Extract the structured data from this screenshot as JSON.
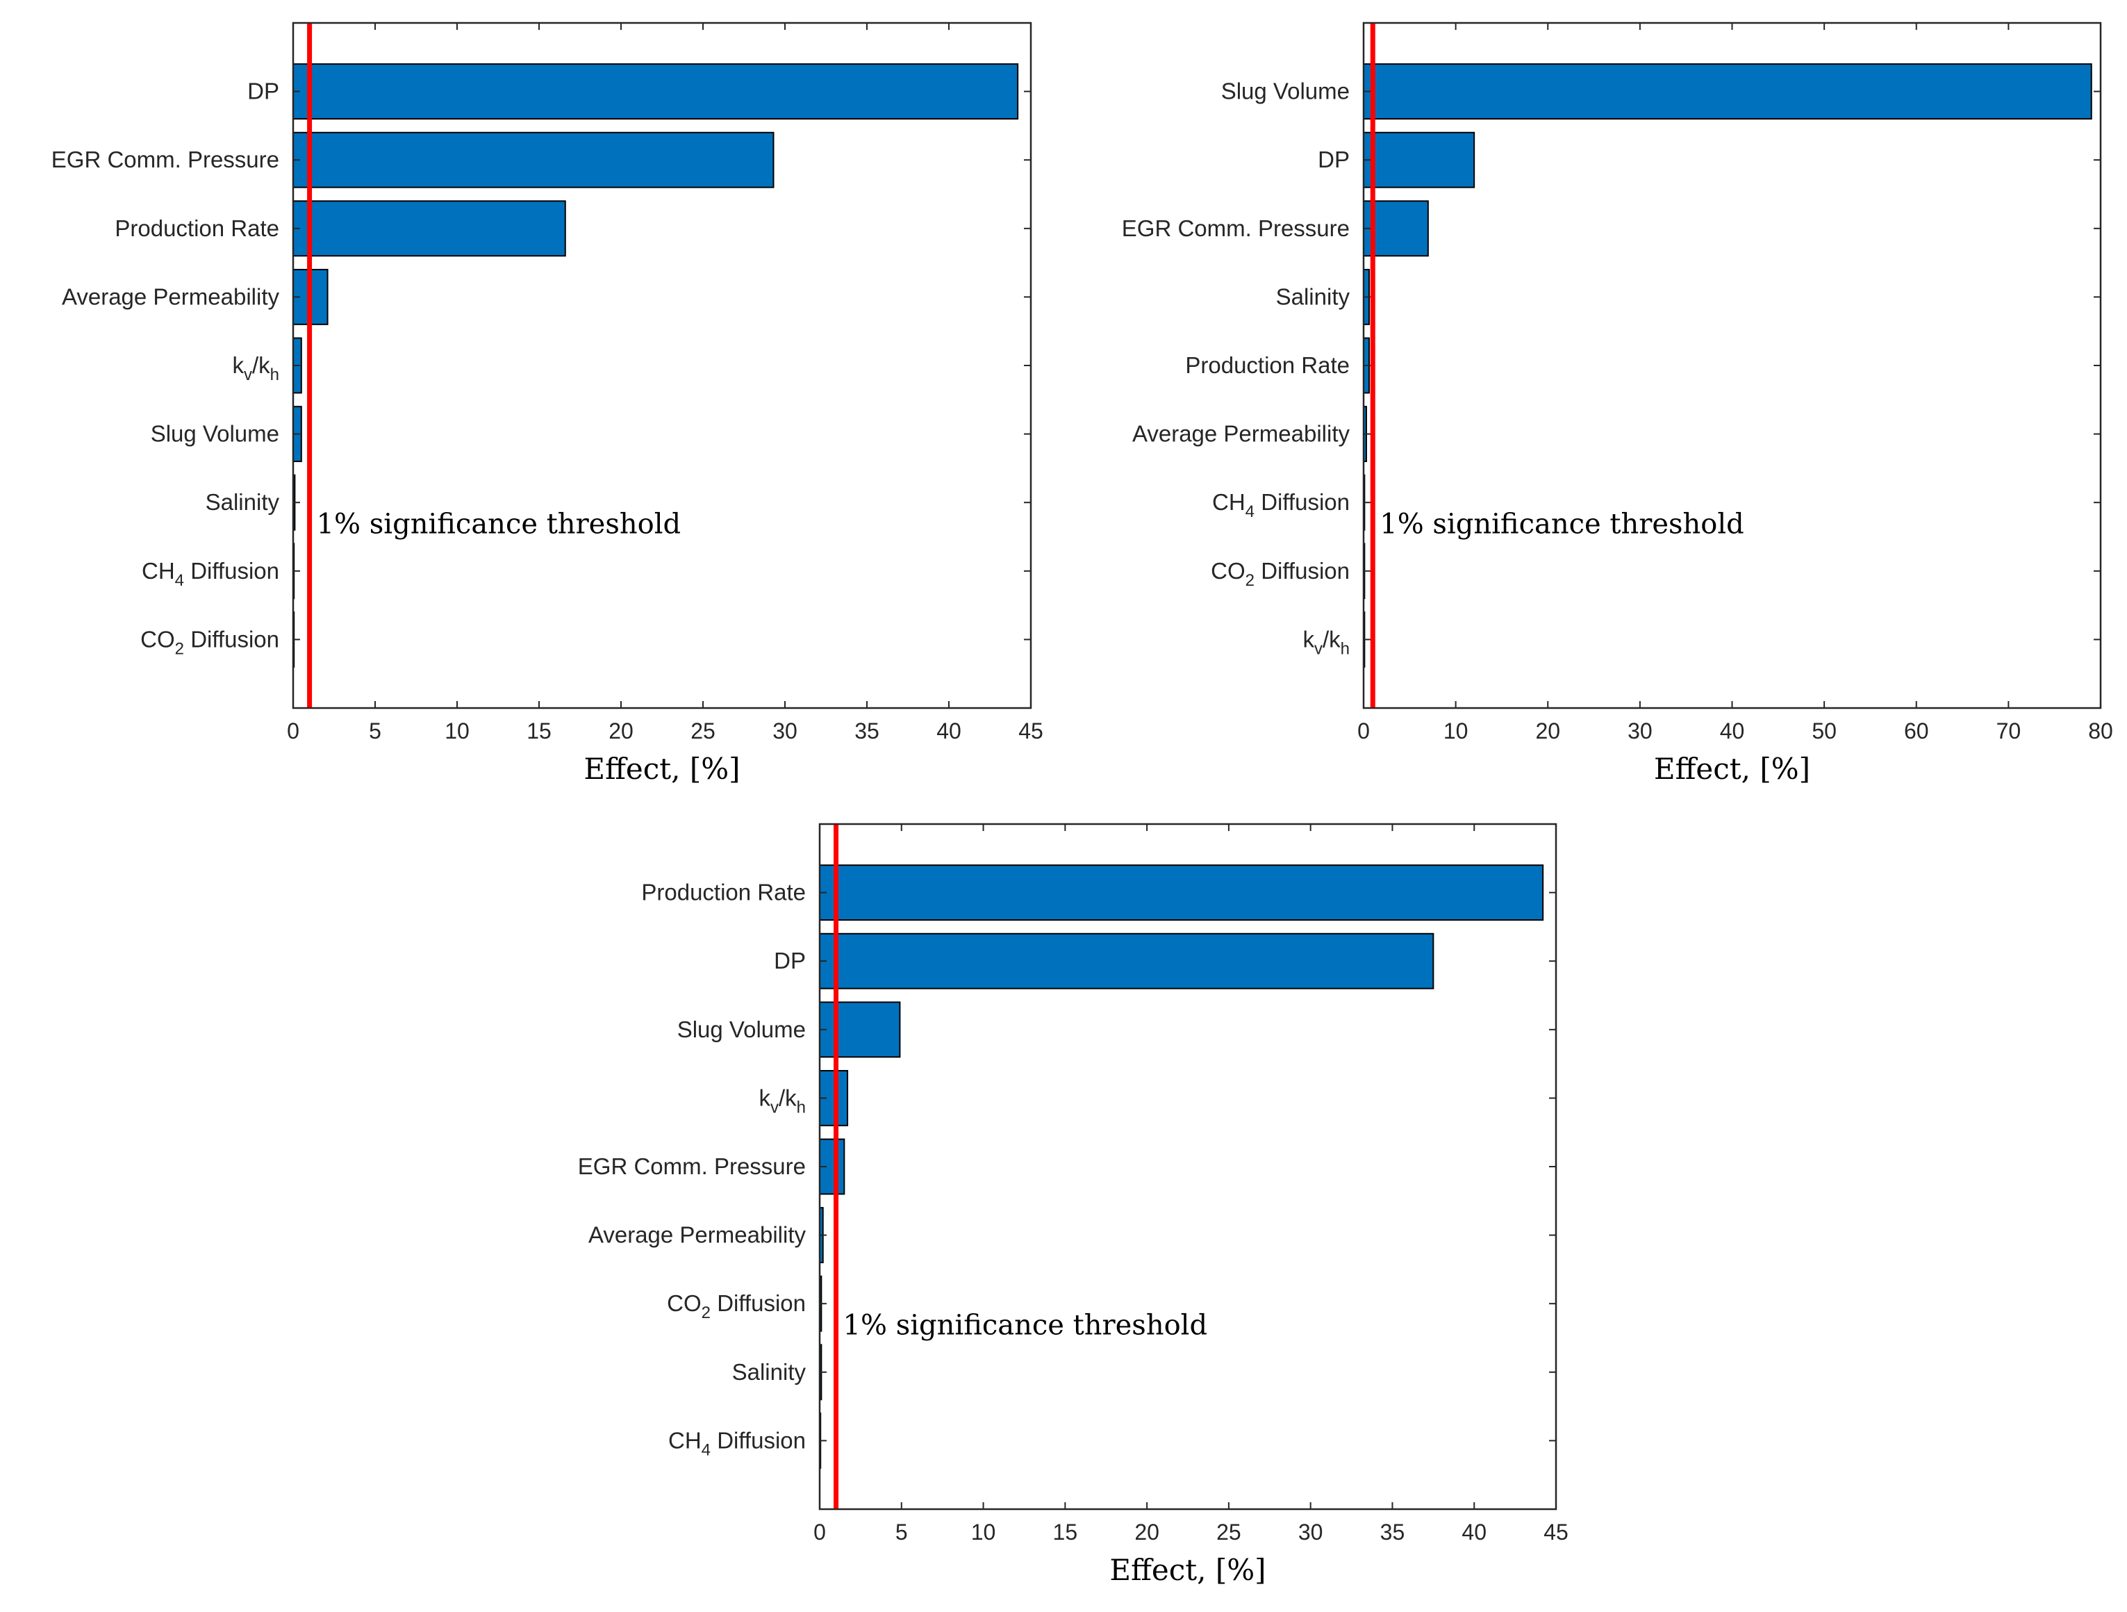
{
  "colors": {
    "bar": "#0072BD",
    "threshold": "#FF0000",
    "axis": "#262626"
  },
  "chart_data": [
    {
      "type": "bar",
      "orientation": "horizontal",
      "categories": [
        "DP",
        "EGR Comm. Pressure",
        "Production Rate",
        "Average Permeability",
        "kv/kh",
        "Slug Volume",
        "Salinity",
        "CH4 Diffusion",
        "CO2 Diffusion"
      ],
      "values": [
        44.2,
        29.3,
        16.6,
        2.1,
        0.5,
        0.5,
        0.1,
        0.0,
        0.0
      ],
      "xlabel": "Effect,  [%]",
      "xlim": [
        0,
        45
      ],
      "xticks": [
        0,
        5,
        10,
        15,
        20,
        25,
        30,
        35,
        40,
        45
      ],
      "threshold": {
        "value": 1,
        "label": "1% significance threshold"
      }
    },
    {
      "type": "bar",
      "orientation": "horizontal",
      "categories": [
        "Slug Volume",
        "DP",
        "EGR Comm. Pressure",
        "Salinity",
        "Production Rate",
        "Average Permeability",
        "CH4 Diffusion",
        "CO2 Diffusion",
        "kv/kh"
      ],
      "values": [
        79.0,
        12.0,
        7.0,
        0.6,
        0.6,
        0.3,
        0.1,
        0.1,
        0.1
      ],
      "xlabel": "Effect,  [%]",
      "xlim": [
        0,
        80
      ],
      "xticks": [
        0,
        10,
        20,
        30,
        40,
        50,
        60,
        70,
        80
      ],
      "threshold": {
        "value": 1,
        "label": "1% significance threshold"
      }
    },
    {
      "type": "bar",
      "orientation": "horizontal",
      "categories": [
        "Production Rate",
        "DP",
        "Slug Volume",
        "kv/kh",
        "EGR Comm. Pressure",
        "Average Permeability",
        "CO2 Diffusion",
        "Salinity",
        "CH4 Diffusion"
      ],
      "values": [
        44.2,
        37.5,
        4.9,
        1.7,
        1.5,
        0.2,
        0.1,
        0.1,
        0.0
      ],
      "xlabel": "Effect,  [%]",
      "xlim": [
        0,
        45
      ],
      "xticks": [
        0,
        5,
        10,
        15,
        20,
        25,
        30,
        35,
        40,
        45
      ],
      "threshold": {
        "value": 1,
        "label": "1% significance threshold"
      }
    }
  ]
}
